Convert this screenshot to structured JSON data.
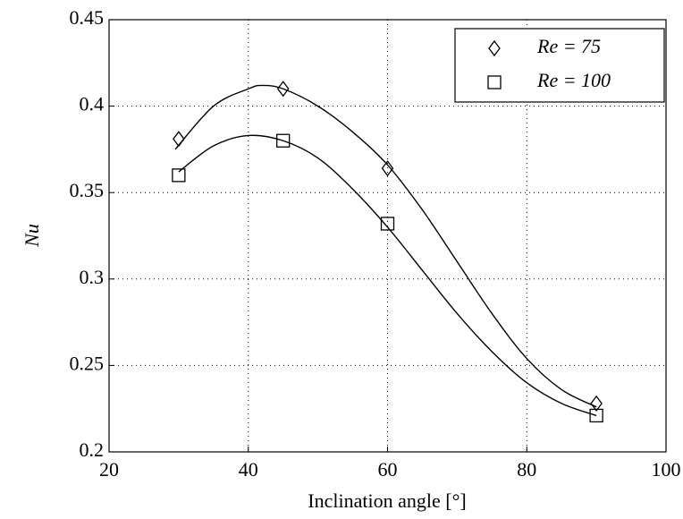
{
  "chart_data": {
    "type": "scatter",
    "x_label": "Inclination angle [°]",
    "y_label": "Nu",
    "xlim": [
      20,
      100
    ],
    "xticks": [
      20,
      40,
      60,
      80,
      100
    ],
    "ylim": [
      0.2,
      0.45
    ],
    "yticks": [
      0.2,
      0.25,
      0.3,
      0.35,
      0.4,
      0.45
    ],
    "grid": true,
    "legend": "upper right",
    "series": [
      {
        "name": "Re = 75",
        "color": "#000000",
        "marker": "diamond",
        "x": [
          30,
          45,
          60,
          90
        ],
        "values": [
          0.381,
          0.41,
          0.364,
          0.228
        ],
        "curve": {
          "x": [
            29.5,
            35,
            40,
            42,
            45,
            50,
            55,
            60,
            65,
            70,
            75,
            80,
            85,
            90
          ],
          "values": [
            0.375,
            0.4,
            0.41,
            0.412,
            0.41,
            0.4,
            0.385,
            0.366,
            0.34,
            0.31,
            0.28,
            0.254,
            0.236,
            0.226
          ]
        }
      },
      {
        "name": "Re = 100",
        "color": "#000000",
        "marker": "square",
        "x": [
          30,
          45,
          60,
          90
        ],
        "values": [
          0.36,
          0.38,
          0.332,
          0.221
        ],
        "curve": {
          "x": [
            30,
            35,
            40,
            45,
            50,
            55,
            60,
            65,
            70,
            75,
            80,
            85,
            90
          ],
          "values": [
            0.362,
            0.377,
            0.383,
            0.38,
            0.37,
            0.352,
            0.33,
            0.305,
            0.28,
            0.258,
            0.24,
            0.228,
            0.221
          ]
        }
      }
    ]
  }
}
